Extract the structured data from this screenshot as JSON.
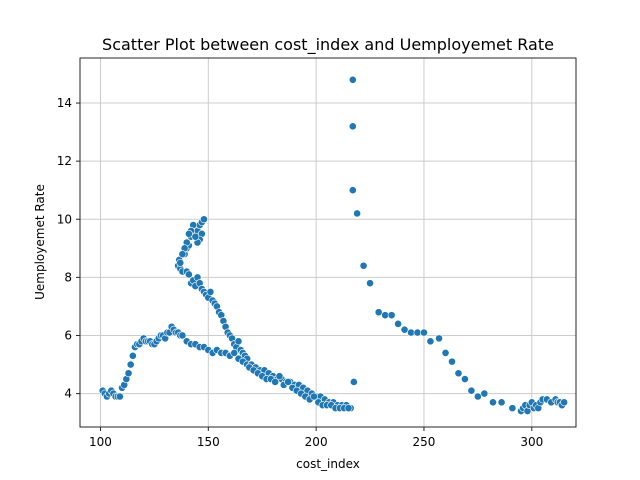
{
  "chart_data": {
    "type": "scatter",
    "title": "Scatter Plot between cost_index and Uemployemet Rate",
    "xlabel": "cost_index",
    "ylabel": "Uemployemet Rate",
    "xlim": [
      90.5,
      320.5
    ],
    "ylim": [
      2.85,
      15.55
    ],
    "xticks": [
      100,
      150,
      200,
      250,
      300
    ],
    "yticks": [
      4,
      6,
      8,
      10,
      12,
      14
    ],
    "grid": true,
    "color": "#1f77b4",
    "series": [
      {
        "x": [
          101,
          102,
          103,
          104,
          105,
          106,
          107,
          108,
          109,
          110,
          111,
          112,
          113,
          114,
          115,
          116,
          117,
          118,
          119,
          120,
          121,
          122,
          123,
          124,
          125,
          126,
          127,
          128,
          129,
          130,
          131,
          132,
          133,
          134,
          135,
          136,
          137,
          136,
          136.5,
          137,
          138,
          139,
          140,
          141,
          142,
          143,
          144,
          145,
          146,
          147,
          148,
          147,
          146,
          145,
          144,
          143,
          142,
          141,
          140,
          139,
          138,
          137,
          140,
          141,
          142,
          143,
          144,
          145,
          146,
          147,
          148,
          149,
          150,
          151,
          152,
          153,
          154,
          155,
          156,
          157,
          158,
          159,
          160,
          161,
          162,
          163,
          164,
          165,
          166,
          167,
          168,
          138,
          140,
          142,
          144,
          146,
          148,
          150,
          152,
          154,
          156,
          158,
          160,
          162,
          164,
          166,
          168,
          170,
          172,
          174,
          176,
          178,
          180,
          182,
          184,
          186,
          188,
          190,
          192,
          194,
          196,
          198,
          200,
          202,
          204,
          206,
          208,
          210,
          212,
          214,
          216,
          169,
          171,
          173,
          175,
          177,
          179,
          181,
          183,
          185,
          187,
          189,
          191,
          193,
          195,
          197,
          199,
          201,
          203,
          205,
          207,
          209,
          211,
          213,
          215,
          217,
          217,
          217,
          217.5,
          219,
          222,
          225,
          229,
          232,
          235,
          238,
          241,
          244,
          247,
          250,
          253,
          257,
          260,
          263,
          266,
          269,
          272,
          275,
          278,
          282,
          286,
          291,
          295,
          296,
          297,
          298,
          299,
          300,
          301,
          302,
          303,
          304,
          305,
          307,
          309,
          311,
          312,
          313,
          314,
          315
        ],
        "y": [
          4.1,
          4.0,
          3.9,
          4.0,
          4.1,
          4.0,
          3.9,
          3.9,
          3.9,
          4.2,
          4.3,
          4.5,
          4.7,
          5.0,
          5.3,
          5.6,
          5.7,
          5.7,
          5.8,
          5.9,
          5.8,
          5.8,
          5.8,
          5.7,
          5.7,
          5.8,
          5.9,
          6.0,
          6.0,
          5.9,
          6.1,
          6.1,
          6.3,
          6.2,
          6.1,
          6.1,
          6.0,
          8.4,
          8.6,
          8.3,
          8.2,
          8.8,
          9.0,
          9.1,
          9.4,
          9.5,
          9.4,
          9.6,
          9.8,
          9.9,
          10.0,
          9.5,
          9.3,
          9.2,
          9.4,
          9.8,
          9.6,
          9.5,
          9.2,
          9.0,
          8.8,
          8.5,
          8.2,
          8.1,
          7.8,
          7.9,
          7.7,
          8.0,
          7.8,
          7.6,
          7.5,
          7.4,
          7.3,
          7.5,
          7.2,
          7.1,
          7.0,
          6.8,
          6.7,
          6.5,
          6.3,
          6.1,
          6.0,
          5.9,
          5.7,
          5.6,
          5.8,
          5.5,
          5.4,
          5.3,
          5.2,
          6.0,
          5.8,
          5.7,
          5.7,
          5.6,
          5.6,
          5.5,
          5.4,
          5.5,
          5.4,
          5.4,
          5.3,
          5.4,
          5.2,
          5.1,
          5.0,
          5.0,
          4.9,
          4.8,
          4.8,
          4.7,
          4.6,
          4.5,
          4.5,
          4.4,
          4.4,
          4.3,
          4.3,
          4.2,
          4.1,
          4.0,
          3.9,
          3.9,
          3.8,
          3.7,
          3.7,
          3.6,
          3.6,
          3.6,
          3.5,
          4.9,
          4.8,
          4.7,
          4.6,
          4.5,
          4.5,
          4.4,
          4.6,
          4.3,
          4.4,
          4.2,
          4.1,
          4.0,
          3.9,
          3.8,
          3.9,
          3.7,
          3.6,
          3.6,
          3.6,
          3.5,
          3.5,
          3.5,
          3.5,
          14.8,
          13.2,
          11.0,
          4.4,
          10.2,
          8.4,
          7.8,
          6.8,
          6.7,
          6.7,
          6.4,
          6.2,
          6.1,
          6.1,
          6.1,
          5.8,
          5.9,
          5.4,
          5.1,
          4.7,
          4.5,
          4.1,
          3.9,
          4.0,
          3.7,
          3.7,
          3.5,
          3.4,
          3.5,
          3.6,
          3.4,
          3.6,
          3.7,
          3.5,
          3.6,
          3.5,
          3.7,
          3.8,
          3.8,
          3.7,
          3.8,
          3.7,
          3.7,
          3.6,
          3.7
        ]
      }
    ]
  }
}
